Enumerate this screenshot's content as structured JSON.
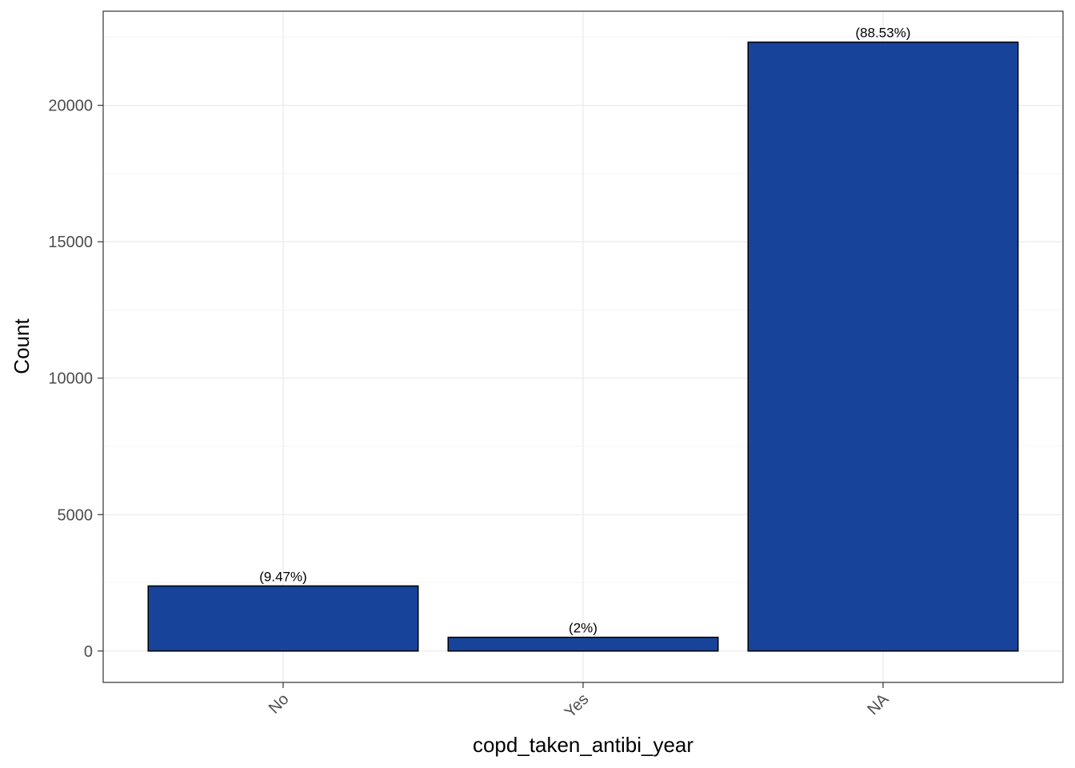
{
  "chart_data": {
    "type": "bar",
    "title": "",
    "xlabel": "copd_taken_antibi_year",
    "ylabel": "Count",
    "categories": [
      "No",
      "Yes",
      "NA"
    ],
    "values": [
      2385,
      503,
      22316
    ],
    "data_labels": [
      "(9.47%)",
      "(2%)",
      "(88.53%)"
    ],
    "ylim": [
      -1150,
      23450
    ],
    "y_ticks": [
      0,
      5000,
      10000,
      15000,
      20000
    ],
    "y_tick_labels": [
      "0",
      "5000",
      "10000",
      "15000",
      "20000"
    ],
    "grid": true,
    "legend": "none",
    "colors": {
      "bar_fill": "#17449A",
      "bar_stroke": "#000000",
      "grid_major": "#EBEBEB",
      "grid_minor": "#F5F5F5",
      "panel_border": "#333333",
      "tick_label": "#4D4D4D",
      "axis_title": "#000000"
    }
  }
}
